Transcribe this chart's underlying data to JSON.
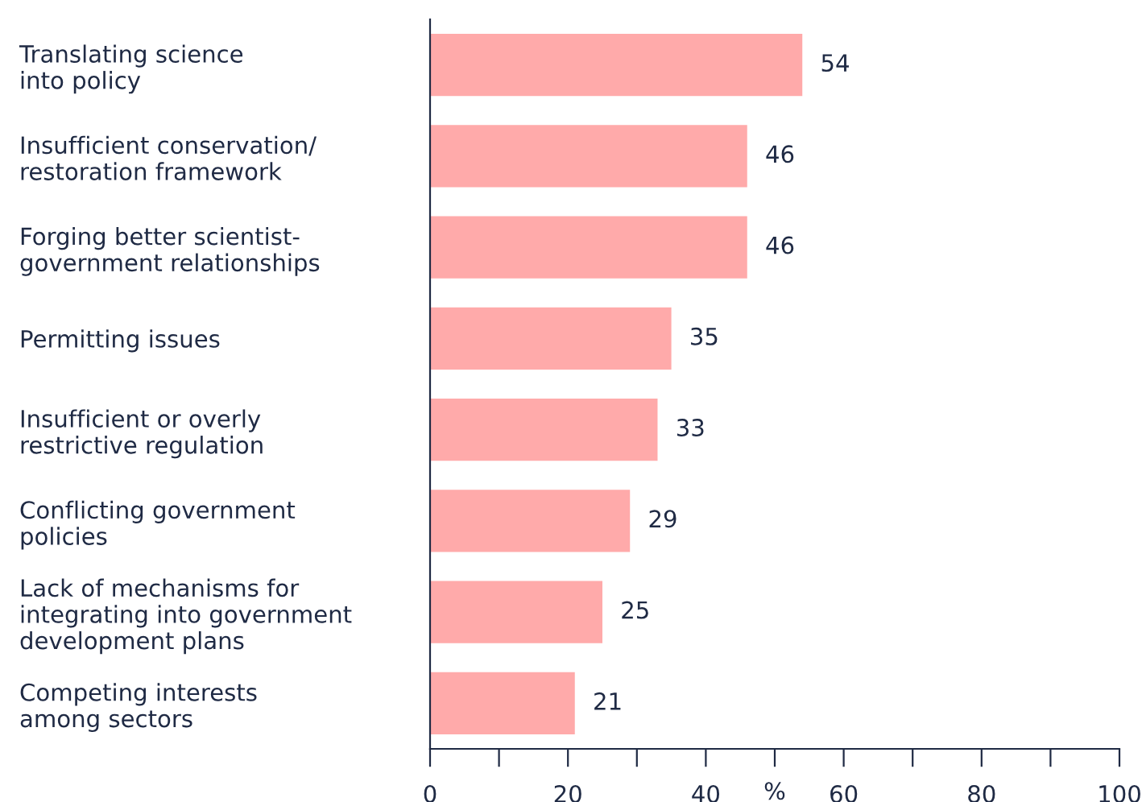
{
  "chart_data": {
    "type": "bar",
    "orientation": "horizontal",
    "xlabel": "%",
    "categories": [
      "Translating science\ninto policy",
      "Insufficient conservation/\nrestoration framework",
      "Forging better scientist-\ngovernment relationships",
      "Permitting issues",
      "Insufficient or overly\nrestrictive regulation",
      "Conflicting government\npolicies",
      "Lack of mechanisms for\nintegrating into government\ndevelopment plans",
      "Competing interests\namong sectors"
    ],
    "values": [
      54,
      46,
      46,
      35,
      33,
      29,
      25,
      21
    ],
    "color": "#ffaaaa",
    "xlim": [
      0,
      100
    ],
    "xticks": [
      0,
      {
        "value": 10,
        "label": null
      },
      20,
      {
        "value": 30,
        "label": null
      },
      40,
      {
        "value": 50,
        "label": null
      },
      60,
      {
        "value": 70,
        "label": null
      },
      80,
      {
        "value": 90,
        "label": null
      },
      100
    ],
    "data_labels": true,
    "grid": false,
    "legend": false
  }
}
